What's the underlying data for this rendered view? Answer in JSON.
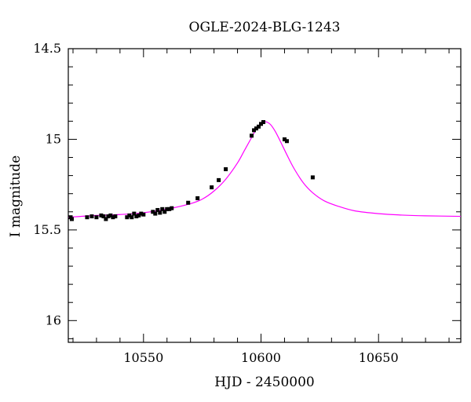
{
  "chart_data": {
    "type": "scatter",
    "title": "OGLE-2024-BLG-1243",
    "xlabel": "HJD - 2450000",
    "ylabel": "I magnitude",
    "xlim": [
      10518,
      10685
    ],
    "ylim": [
      16.12,
      14.5
    ],
    "y_inverted": true,
    "x_ticks": [
      10550,
      10600,
      10650
    ],
    "x_tick_labels": [
      "10550",
      "10600",
      "10650"
    ],
    "y_ticks": [
      14.5,
      15,
      15.5,
      16
    ],
    "y_tick_labels": [
      "14.5",
      "15",
      "15.5",
      "16"
    ],
    "grid": false,
    "legend": "none",
    "colors": {
      "model": "#ff00ff",
      "points": "#000000",
      "axes": "#000000"
    },
    "series": [
      {
        "kind": "points",
        "x": [
          10519,
          10519.5,
          10526,
          10528,
          10530,
          10532,
          10533,
          10534,
          10535,
          10536,
          10537,
          10538,
          10543,
          10544,
          10545,
          10546,
          10547,
          10548,
          10549,
          10550,
          10554,
          10555,
          10556,
          10557,
          10558,
          10559,
          10560,
          10561,
          10562,
          10569,
          10573,
          10579,
          10582,
          10585,
          10596,
          10597,
          10598,
          10599,
          10600,
          10601,
          10610,
          10611,
          10622
        ],
        "y": [
          15.43,
          15.44,
          15.43,
          15.425,
          15.43,
          15.42,
          15.425,
          15.44,
          15.425,
          15.42,
          15.43,
          15.425,
          15.43,
          15.42,
          15.43,
          15.41,
          15.425,
          15.42,
          15.41,
          15.415,
          15.4,
          15.41,
          15.39,
          15.405,
          15.385,
          15.4,
          15.385,
          15.385,
          15.38,
          15.35,
          15.325,
          15.265,
          15.225,
          15.165,
          14.98,
          14.95,
          14.94,
          14.93,
          14.915,
          14.905,
          15.0,
          15.01,
          15.21
        ],
        "err": [
          0.008,
          0.008,
          0.008,
          0.008,
          0.008,
          0.008,
          0.008,
          0.008,
          0.008,
          0.008,
          0.008,
          0.008,
          0.008,
          0.008,
          0.008,
          0.008,
          0.008,
          0.008,
          0.008,
          0.008,
          0.008,
          0.008,
          0.008,
          0.008,
          0.008,
          0.008,
          0.008,
          0.008,
          0.008,
          0.008,
          0.008,
          0.008,
          0.008,
          0.008,
          0.008,
          0.008,
          0.008,
          0.008,
          0.008,
          0.008,
          0.008,
          0.008,
          0.008
        ]
      },
      {
        "kind": "model",
        "x": [
          10518,
          10530,
          10540,
          10550,
          10560,
          10570,
          10575,
          10580,
          10585,
          10590,
          10593,
          10596,
          10598,
          10600,
          10602,
          10604,
          10606,
          10608,
          10611,
          10614,
          10618,
          10622,
          10627,
          10633,
          10640,
          10650,
          10660,
          10670,
          10685
        ],
        "y": [
          15.43,
          15.42,
          15.415,
          15.405,
          15.385,
          15.355,
          15.33,
          15.285,
          15.22,
          15.13,
          15.06,
          14.99,
          14.943,
          14.912,
          14.903,
          14.918,
          14.955,
          15.005,
          15.085,
          15.16,
          15.24,
          15.295,
          15.34,
          15.37,
          15.395,
          15.41,
          15.418,
          15.422,
          15.425
        ]
      }
    ]
  }
}
